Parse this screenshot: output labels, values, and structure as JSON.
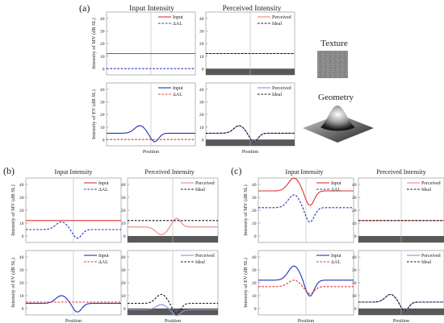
{
  "col_headers": {
    "input": "Input Intensity",
    "perceived": "Perceived Intensity"
  },
  "labels": {
    "ylabel_mv": "Intensity of MV (dB SL)",
    "ylabel_ev": "Intensity of EV (dB SL)",
    "xlabel": "Position"
  },
  "panel_letters": {
    "a": "(a)",
    "b": "(b)",
    "c": "(c)"
  },
  "texture": {
    "label": "Texture"
  },
  "geometry": {
    "label": "Geometry"
  },
  "colors": {
    "input_mv": "#e03030",
    "input_ev": "#2030c0",
    "al_mv": "#2030c0",
    "al_ev": "#e03030",
    "perceived_mv": "#f08080",
    "perceived_ev": "#8090e0",
    "ideal": "#111111",
    "floor": "#595959"
  },
  "chart_data": [
    {
      "id": "a_input_mv",
      "type": "line",
      "ylabel": "Intensity of MV (dB SL)",
      "ylim": [
        -5,
        45
      ],
      "yticks": [
        0,
        10,
        20,
        30,
        40
      ],
      "x": [
        -1,
        1
      ],
      "series": [
        {
          "name": "Input",
          "values": [
            12,
            12
          ]
        },
        {
          "name": "ΔAL",
          "values": [
            0,
            0
          ]
        }
      ]
    },
    {
      "id": "a_perc_mv",
      "type": "line",
      "ylim": [
        -5,
        45
      ],
      "yticks": [
        0,
        10,
        20,
        30,
        40
      ],
      "x": [
        -1,
        1
      ],
      "series": [
        {
          "name": "Perceived",
          "values": [
            12,
            12
          ]
        },
        {
          "name": "Ideal",
          "values": [
            12,
            12
          ]
        }
      ]
    },
    {
      "id": "a_input_ev",
      "type": "line",
      "ylabel": "Intensity of EV (dB SL)",
      "xlabel": "Position",
      "ylim": [
        -5,
        45
      ],
      "yticks": [
        0,
        10,
        20,
        30,
        40
      ],
      "x": [
        -1,
        1
      ],
      "series": [
        {
          "name": "Input",
          "values": [
            5,
            5
          ]
        },
        {
          "name": "ΔAL",
          "values": [
            0,
            0
          ]
        }
      ]
    },
    {
      "id": "a_perc_ev",
      "type": "line",
      "xlabel": "Position",
      "ylim": [
        -5,
        45
      ],
      "yticks": [
        0,
        10,
        20,
        30,
        40
      ],
      "x": [
        -1,
        1
      ],
      "series": [
        {
          "name": "Perceived",
          "values": [
            5,
            5
          ]
        },
        {
          "name": "Ideal",
          "values": [
            5,
            5
          ]
        }
      ]
    },
    {
      "id": "b_input_mv",
      "type": "line",
      "ylabel": "Intensity of MV (dB SL)",
      "ylim": [
        -5,
        45
      ],
      "yticks": [
        0,
        10,
        20,
        30,
        40
      ],
      "x": [
        -1,
        1
      ],
      "series": [
        {
          "name": "Input",
          "values": [
            12,
            12
          ]
        },
        {
          "name": "ΔAL",
          "values": [
            5,
            5
          ]
        }
      ]
    },
    {
      "id": "b_perc_mv",
      "type": "line",
      "ylim": [
        -5,
        45
      ],
      "yticks": [
        0,
        10,
        20,
        30,
        40
      ],
      "x": [
        -1,
        1
      ],
      "series": [
        {
          "name": "Perceived",
          "values": [
            7,
            7
          ]
        },
        {
          "name": "Ideal",
          "values": [
            12,
            12
          ]
        }
      ]
    },
    {
      "id": "b_input_ev",
      "type": "line",
      "ylabel": "Intensity of EV (dB SL)",
      "xlabel": "Position",
      "ylim": [
        -5,
        45
      ],
      "yticks": [
        0,
        10,
        20,
        30,
        40
      ],
      "x": [
        -1,
        1
      ],
      "series": [
        {
          "name": "Input",
          "values": [
            4,
            4
          ]
        },
        {
          "name": "ΔAL",
          "values": [
            5,
            5
          ]
        }
      ]
    },
    {
      "id": "b_perc_ev",
      "type": "line",
      "xlabel": "Position",
      "ylim": [
        -5,
        45
      ],
      "yticks": [
        0,
        10,
        20,
        30,
        40
      ],
      "x": [
        -1,
        1
      ],
      "series": [
        {
          "name": "Perceived",
          "values": [
            -1,
            -1
          ]
        },
        {
          "name": "Ideal",
          "values": [
            4,
            4
          ]
        }
      ]
    },
    {
      "id": "c_input_mv",
      "type": "line",
      "ylabel": "Intensity of MV (dB SL)",
      "ylim": [
        -5,
        45
      ],
      "yticks": [
        0,
        10,
        20,
        30,
        40
      ],
      "x": [
        -1,
        1
      ],
      "series": [
        {
          "name": "Input",
          "values": [
            35,
            35
          ]
        },
        {
          "name": "ΔAL",
          "values": [
            22,
            22
          ]
        }
      ]
    },
    {
      "id": "c_perc_mv",
      "type": "line",
      "ylim": [
        -5,
        45
      ],
      "yticks": [
        0,
        10,
        20,
        30,
        40
      ],
      "x": [
        -1,
        1
      ],
      "series": [
        {
          "name": "Perceived",
          "values": [
            12,
            12
          ]
        },
        {
          "name": "Ideal",
          "values": [
            12,
            12
          ]
        }
      ]
    },
    {
      "id": "c_input_ev",
      "type": "line",
      "ylabel": "Intensity of EV (dB SL)",
      "xlabel": "Position",
      "ylim": [
        -5,
        45
      ],
      "yticks": [
        0,
        10,
        20,
        30,
        40
      ],
      "x": [
        -1,
        1
      ],
      "series": [
        {
          "name": "Input",
          "values": [
            22,
            22
          ]
        },
        {
          "name": "ΔAL",
          "values": [
            17,
            17
          ]
        }
      ]
    },
    {
      "id": "c_perc_ev",
      "type": "line",
      "xlabel": "Position",
      "ylim": [
        -5,
        45
      ],
      "yticks": [
        0,
        10,
        20,
        30,
        40
      ],
      "x": [
        -1,
        1
      ],
      "series": [
        {
          "name": "Perceived",
          "values": [
            5,
            5
          ]
        },
        {
          "name": "Ideal",
          "values": [
            5,
            5
          ]
        }
      ]
    }
  ]
}
